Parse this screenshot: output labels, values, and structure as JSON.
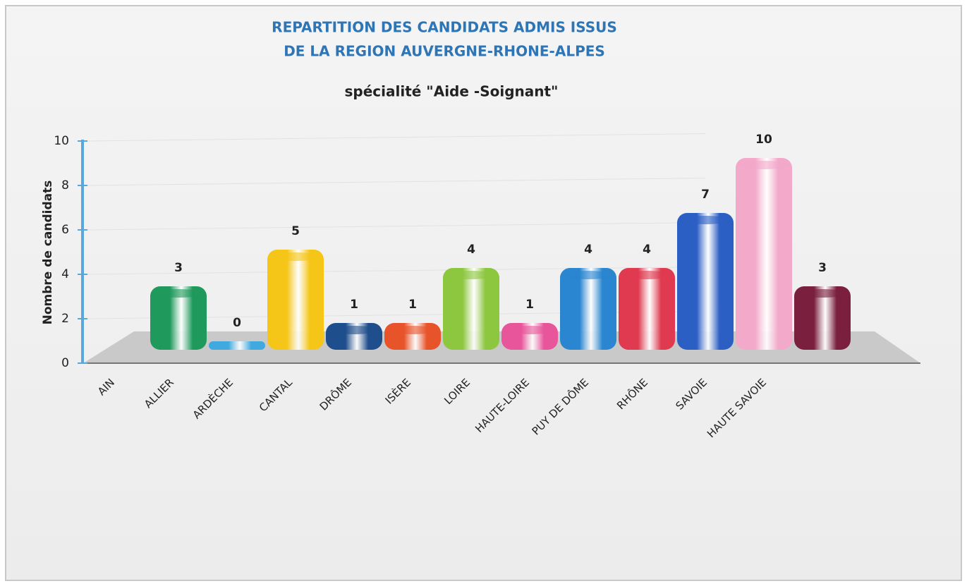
{
  "chart_data": {
    "type": "bar",
    "title_lines": [
      "REPARTITION DES CANDIDATS ADMIS ISSUS",
      "DE LA REGION AUVERGNE-RHONE-ALPES"
    ],
    "subtitle": "spécialité \"Aide -Soignant\"",
    "y_axis_label": "Nombre de candidats",
    "categories": [
      "AIN",
      "ALLIER",
      "ARDÈCHE",
      "CANTAL",
      "DRÔME",
      "ISÈRE",
      "LOIRE",
      "HAUTE-LOIRE",
      "PUY DE DÔME",
      "RHÔNE",
      "SAVOIE",
      "HAUTE SAVOIE"
    ],
    "values": [
      3,
      0,
      5,
      1,
      1,
      4,
      1,
      4,
      4,
      7,
      10,
      3
    ],
    "colors": [
      "#1f9a5c",
      "#3fa9e0",
      "#f5c518",
      "#1f4e8c",
      "#e8542a",
      "#8dc63f",
      "#e8559a",
      "#2a86d0",
      "#e03a50",
      "#2c5fc4",
      "#f3a9ca",
      "#7a1f3d"
    ],
    "ylim": [
      0,
      10
    ],
    "yticks": [
      0,
      2,
      4,
      6,
      8,
      10
    ],
    "grid": true
  }
}
